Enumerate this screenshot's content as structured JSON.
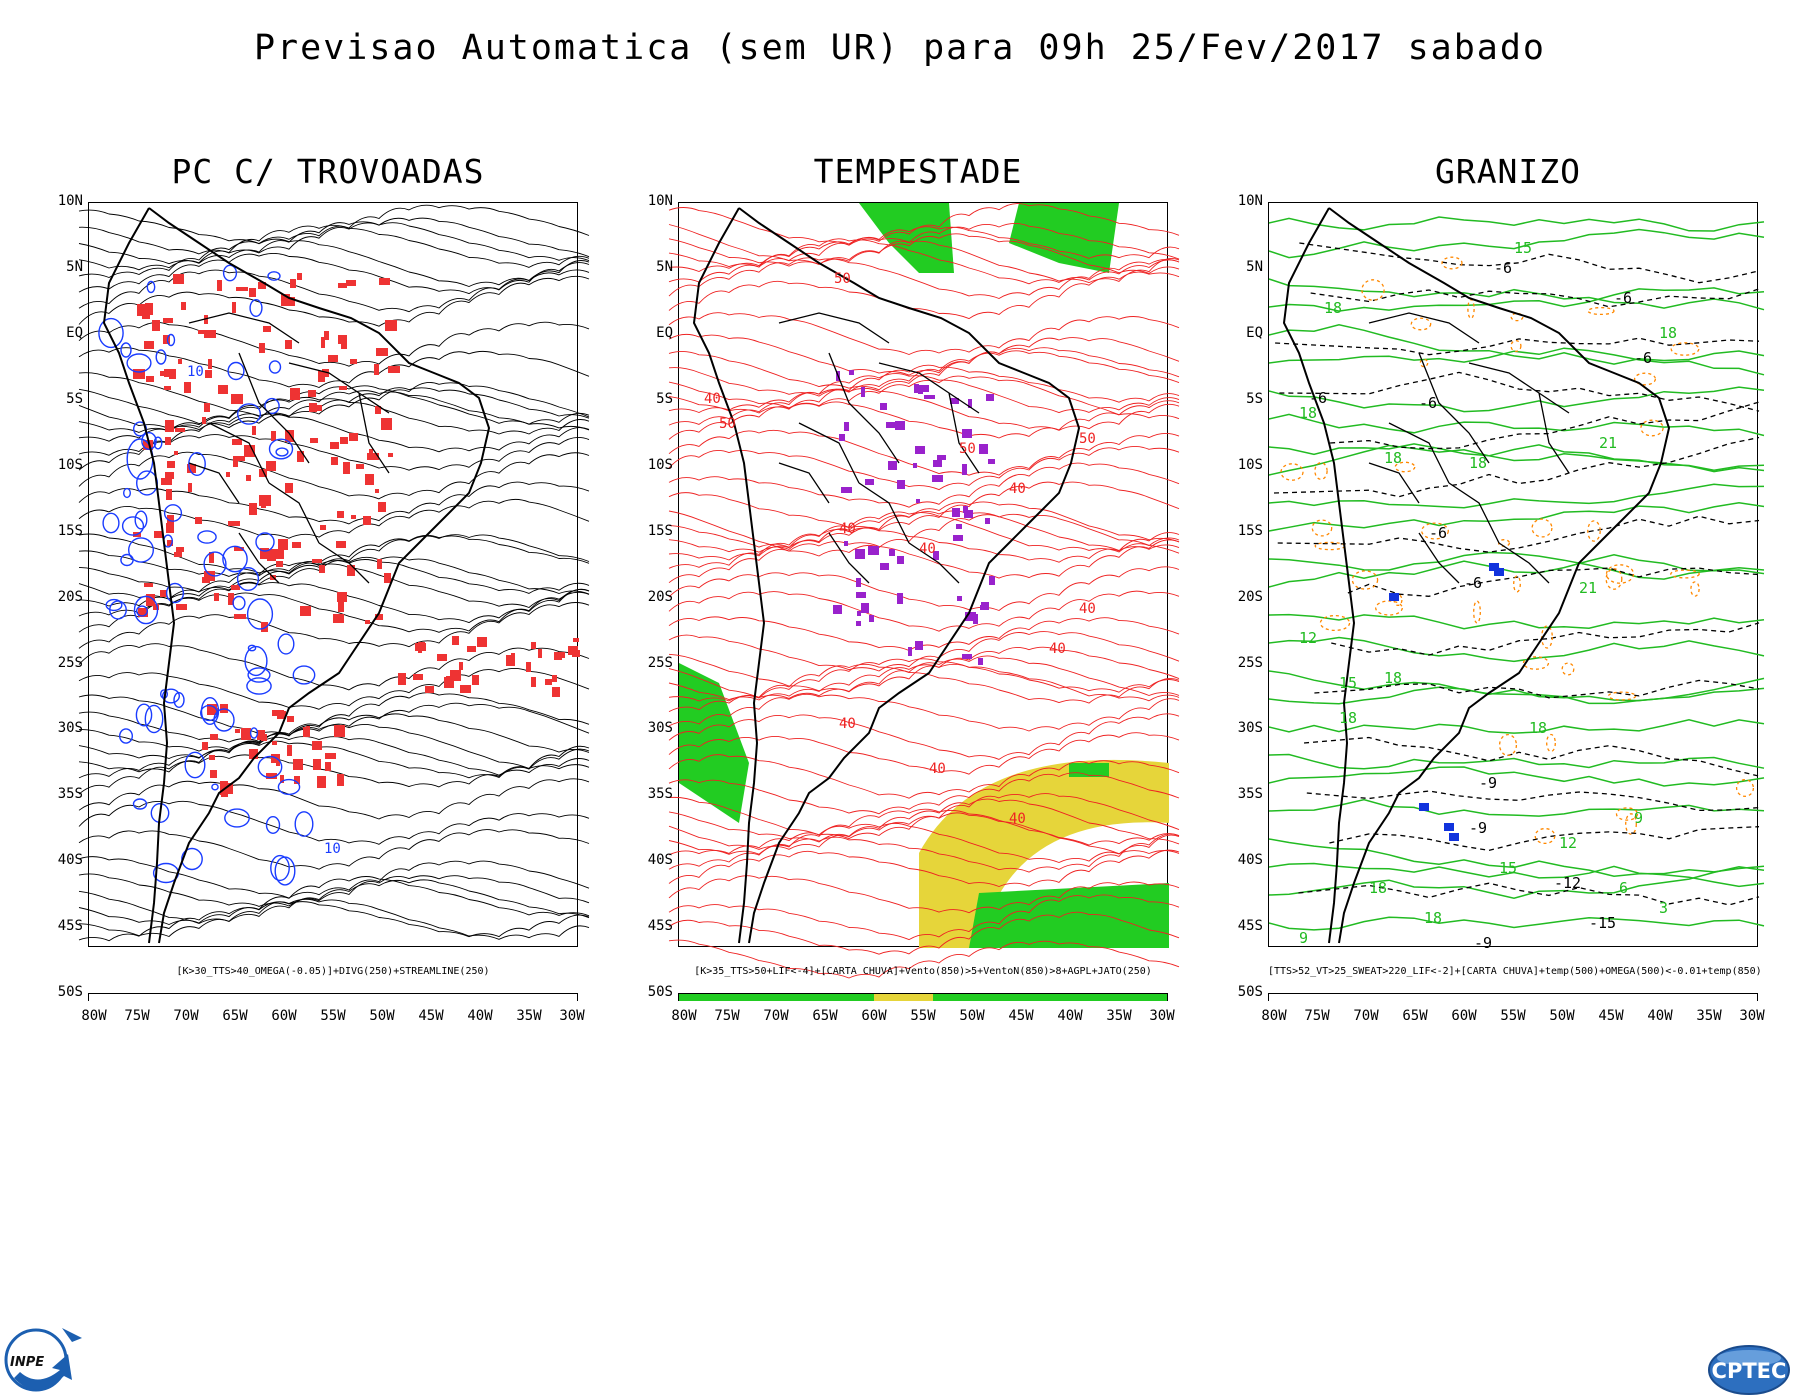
{
  "title": "Previsao Automatica (sem UR) para 09h 25/Fev/2017 sabado",
  "lat_labels": [
    "10N",
    "5N",
    "EQ",
    "5S",
    "10S",
    "15S",
    "20S",
    "25S",
    "30S",
    "35S",
    "40S",
    "45S",
    "50S"
  ],
  "lon_labels": [
    "80W",
    "75W",
    "70W",
    "65W",
    "60W",
    "55W",
    "50W",
    "45W",
    "40W",
    "35W",
    "30W"
  ],
  "panels": [
    {
      "title": "PC C/ TROVOADAS",
      "caption": "[K>30_TTS>40_OMEGA(-0.05)]+DIVG(250)+STREAMLINE(250)",
      "contour_labels": [
        "10",
        "10"
      ]
    },
    {
      "title": "TEMPESTADE",
      "caption": "[K>35_TTS>50+LIF<-4]+[CARTA CHUVA]+Vento(850)>5+VentoN(850)>8+AGPL+JATO(250)",
      "contour_labels": [
        "50",
        "40",
        "50",
        "40",
        "50",
        "40",
        "50",
        "40",
        "40",
        "40",
        "40",
        "40",
        "40"
      ]
    },
    {
      "title": "GRANIZO",
      "caption": "[TTS>52_VT>25_SWEAT>220_LIF<-2]+[CARTA CHUVA]+temp(500)+OMEGA(500)<-0.01+temp(850)",
      "contour_labels_green": [
        "15",
        "18",
        "18",
        "18",
        "18",
        "18",
        "21",
        "21",
        "12",
        "15",
        "18",
        "18",
        "18",
        "12",
        "9",
        "15",
        "18",
        "18",
        "6",
        "3",
        "9"
      ],
      "contour_labels_black": [
        "-6",
        "-6",
        "-6",
        "-6",
        "-6",
        "-6",
        "-6",
        "-9",
        "-12",
        "-15",
        "-9",
        "-9"
      ]
    }
  ],
  "colors": {
    "streamline_black": "#000000",
    "contour_blue": "#1a3cff",
    "shade_red": "#ee3333",
    "streamline_red": "#ee2222",
    "shade_green": "#22cc22",
    "shade_yellow": "#e6d53a",
    "shade_purple": "#9922cc",
    "contour_green": "#22bb22",
    "dash_orange": "#ff8800",
    "shade_blue": "#1133dd"
  },
  "logos": {
    "left": "INPE",
    "right": "CPTEC"
  }
}
